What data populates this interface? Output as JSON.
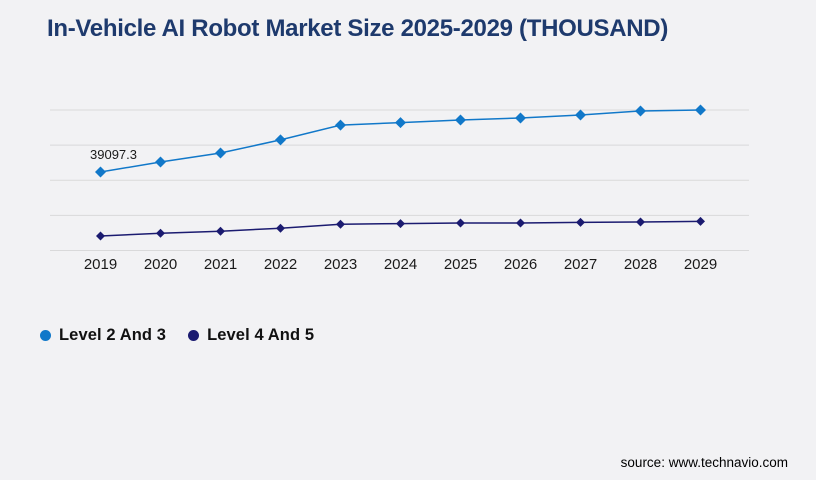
{
  "title": "In-Vehicle AI Robot Market Size 2025-2029 (THOUSAND)",
  "source": {
    "label": "source: www.technavio.com"
  },
  "colors": {
    "background": "#f2f2f4",
    "title": "#1e3a6d",
    "gridline": "#d9d9da",
    "text": "#1a1a1a",
    "series_blue": "#1178c9",
    "series_navy": "#1b1b70"
  },
  "legend": {
    "items": [
      {
        "label": "Level 2 And 3",
        "color": "#1178c9"
      },
      {
        "label": "Level 4 And 5",
        "color": "#1b1b70"
      }
    ]
  },
  "chart_data": {
    "type": "line",
    "title": "In-Vehicle AI Robot Market Size 2025-2029 (THOUSAND)",
    "xlabel": "",
    "ylabel": "",
    "categories": [
      "2019",
      "2020",
      "2021",
      "2022",
      "2023",
      "2024",
      "2025",
      "2026",
      "2027",
      "2028",
      "2029"
    ],
    "series": [
      {
        "name": "Level 2 And 3",
        "color": "#1178c9",
        "marker": "diamond",
        "values": [
          39097.3,
          44100,
          48600,
          55100,
          62500,
          63700,
          65000,
          66000,
          67500,
          69500,
          70000
        ]
      },
      {
        "name": "Level 4 And 5",
        "color": "#1b1b70",
        "marker": "diamond",
        "values": [
          7200,
          8600,
          9600,
          11100,
          13100,
          13400,
          13700,
          13700,
          14000,
          14200,
          14500
        ]
      }
    ],
    "annotations": [
      {
        "text": "39097.3",
        "series": 0,
        "category": "2019"
      }
    ],
    "ylim": [
      0,
      70000
    ],
    "gridline_values": [
      0,
      17500,
      35000,
      52500,
      70000
    ],
    "grid": "horizontal",
    "y_axis_labels_visible": false,
    "legend_position": "bottom-left"
  }
}
